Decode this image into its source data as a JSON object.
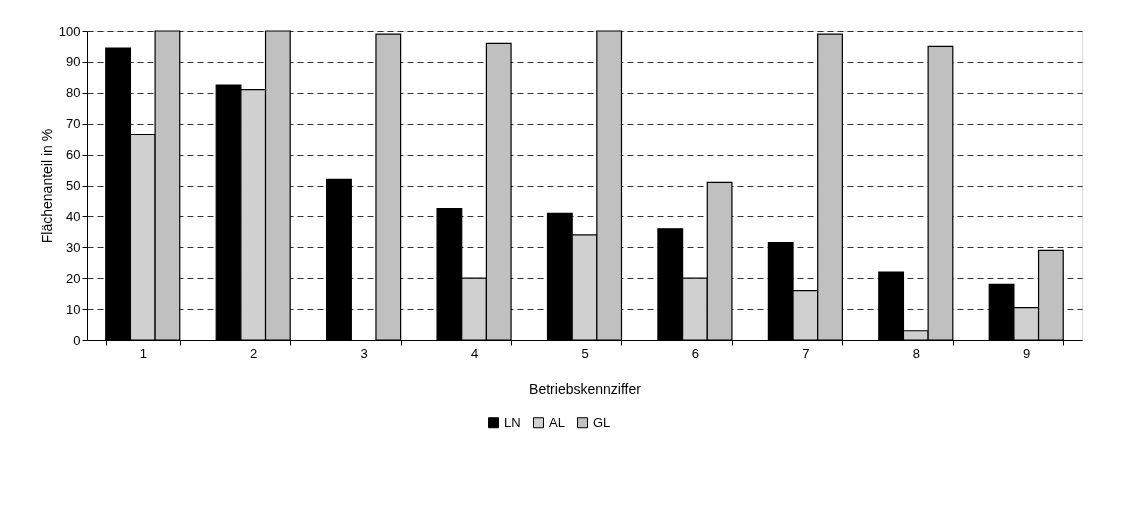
{
  "chart_data": {
    "type": "bar",
    "xlabel": "Betriebskennziffer",
    "ylabel": "Flächenanteil in %",
    "categories": [
      "1",
      "2",
      "3",
      "4",
      "5",
      "6",
      "7",
      "8",
      "9"
    ],
    "series": [
      {
        "name": "LN",
        "color": "#000000",
        "values": [
          94.5,
          82.5,
          52,
          42.5,
          41,
          36,
          31.5,
          22,
          18
        ]
      },
      {
        "name": "AL",
        "color": "#d0d0d0",
        "values": [
          66.5,
          81,
          null,
          20,
          34,
          20,
          16,
          3,
          10.5
        ]
      },
      {
        "name": "GL",
        "color": "#c0c0c0",
        "values": [
          100,
          100,
          99,
          96,
          100,
          51,
          99,
          95,
          29
        ]
      }
    ],
    "ylim": [
      0,
      100
    ],
    "yticks": [
      0,
      10,
      20,
      30,
      40,
      50,
      60,
      70,
      80,
      90,
      100
    ],
    "grid": "y",
    "legend": "bottom"
  }
}
